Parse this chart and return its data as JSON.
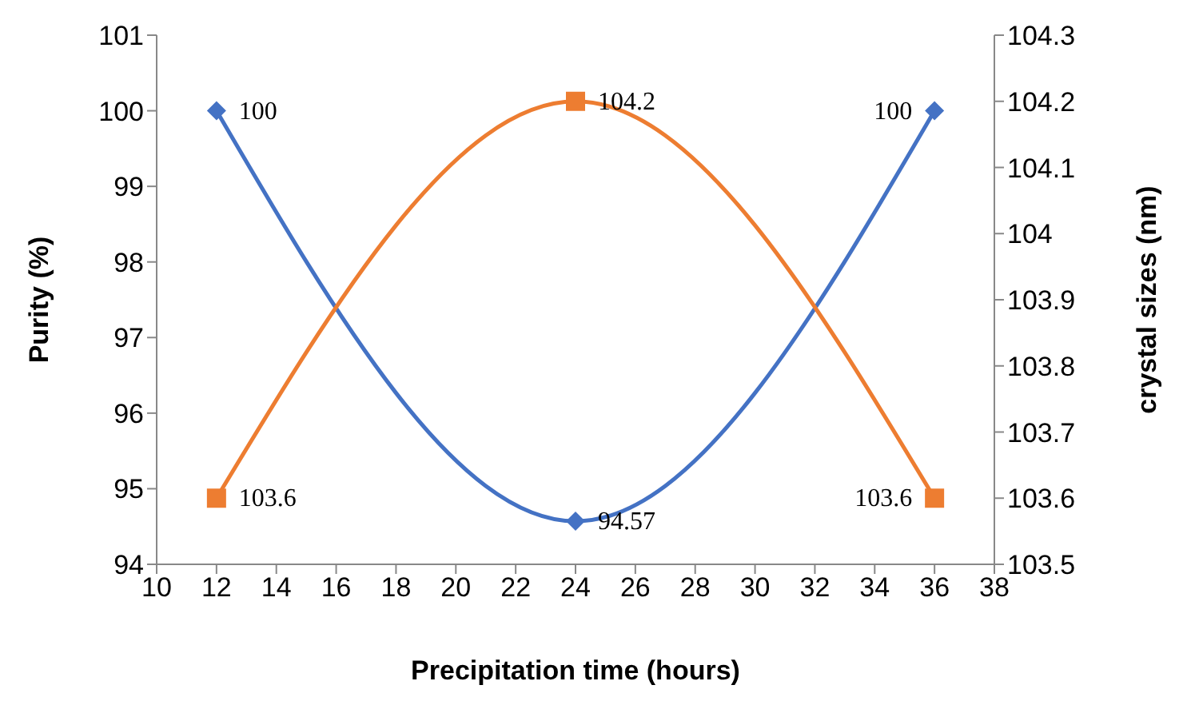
{
  "chart_data": {
    "type": "line",
    "xlabel": "Precipitation time (hours)",
    "ylabel": "Purity (%)",
    "y2label": "crystal sizes (nm)",
    "x": [
      12,
      24,
      36
    ],
    "series": [
      {
        "color": "#4472c4",
        "values": [
          100,
          94.57,
          100
        ],
        "marker": "diamond"
      },
      {
        "color": "#ed7d31",
        "values": [
          103.6,
          104.2,
          103.6
        ],
        "marker": "square",
        "axis": "y2"
      }
    ],
    "xlim": [
      10,
      38
    ],
    "xticks": [
      10,
      12,
      14,
      16,
      18,
      20,
      22,
      24,
      26,
      28,
      30,
      32,
      34,
      36,
      38
    ],
    "ylim": [
      94,
      101
    ],
    "yticks": [
      94,
      95,
      96,
      97,
      98,
      99,
      100,
      101
    ],
    "y2lim": [
      103.5,
      104.3
    ],
    "y2ticks": [
      103.5,
      103.6,
      103.7,
      103.8,
      103.9,
      104,
      104.1,
      104.2,
      104.3
    ],
    "data_labels": true,
    "grid": false
  }
}
